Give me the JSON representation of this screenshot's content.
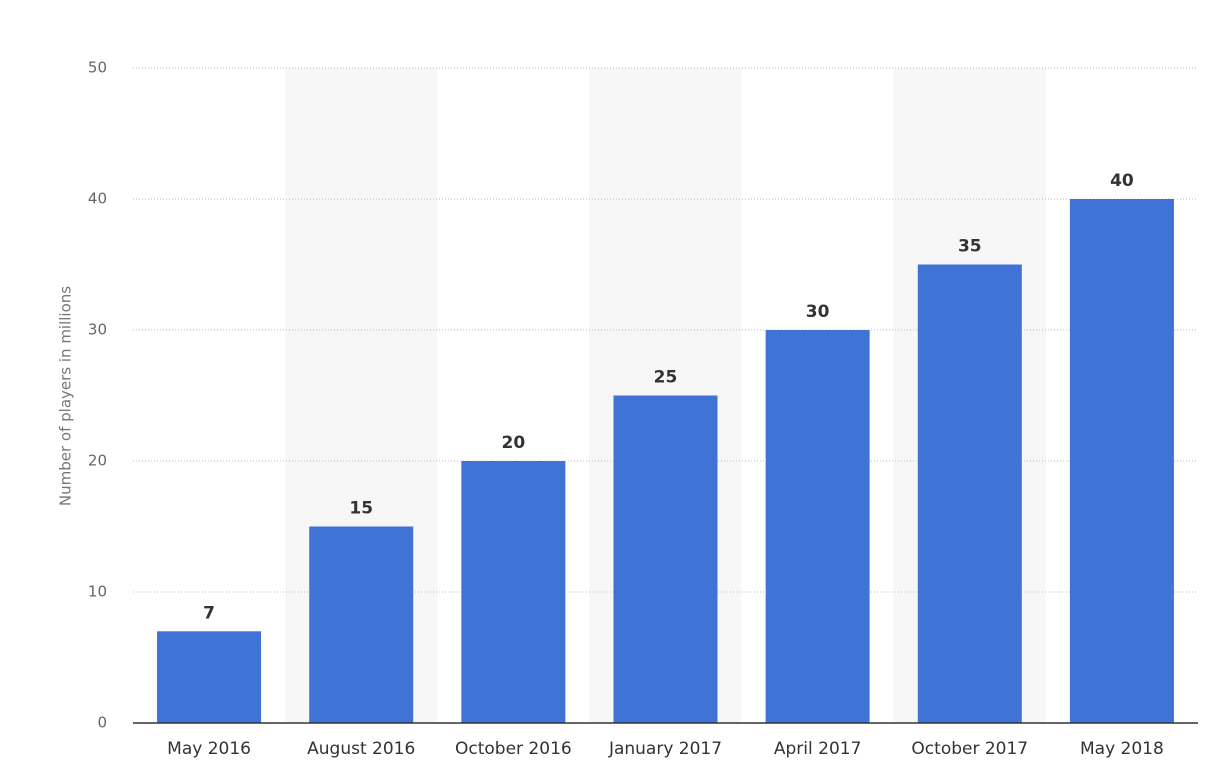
{
  "chart_data": {
    "type": "bar",
    "y_label": "Number of players in millions",
    "categories": [
      "May 2016",
      "August 2016",
      "October 2016",
      "January 2017",
      "April 2017",
      "October 2017",
      "May 2018"
    ],
    "values": [
      7,
      15,
      20,
      25,
      30,
      35,
      40
    ],
    "color": "#3f74d6",
    "ylim": [
      0,
      50
    ],
    "yticks": [
      0,
      10,
      20,
      30,
      40,
      50
    ],
    "grid": true
  }
}
